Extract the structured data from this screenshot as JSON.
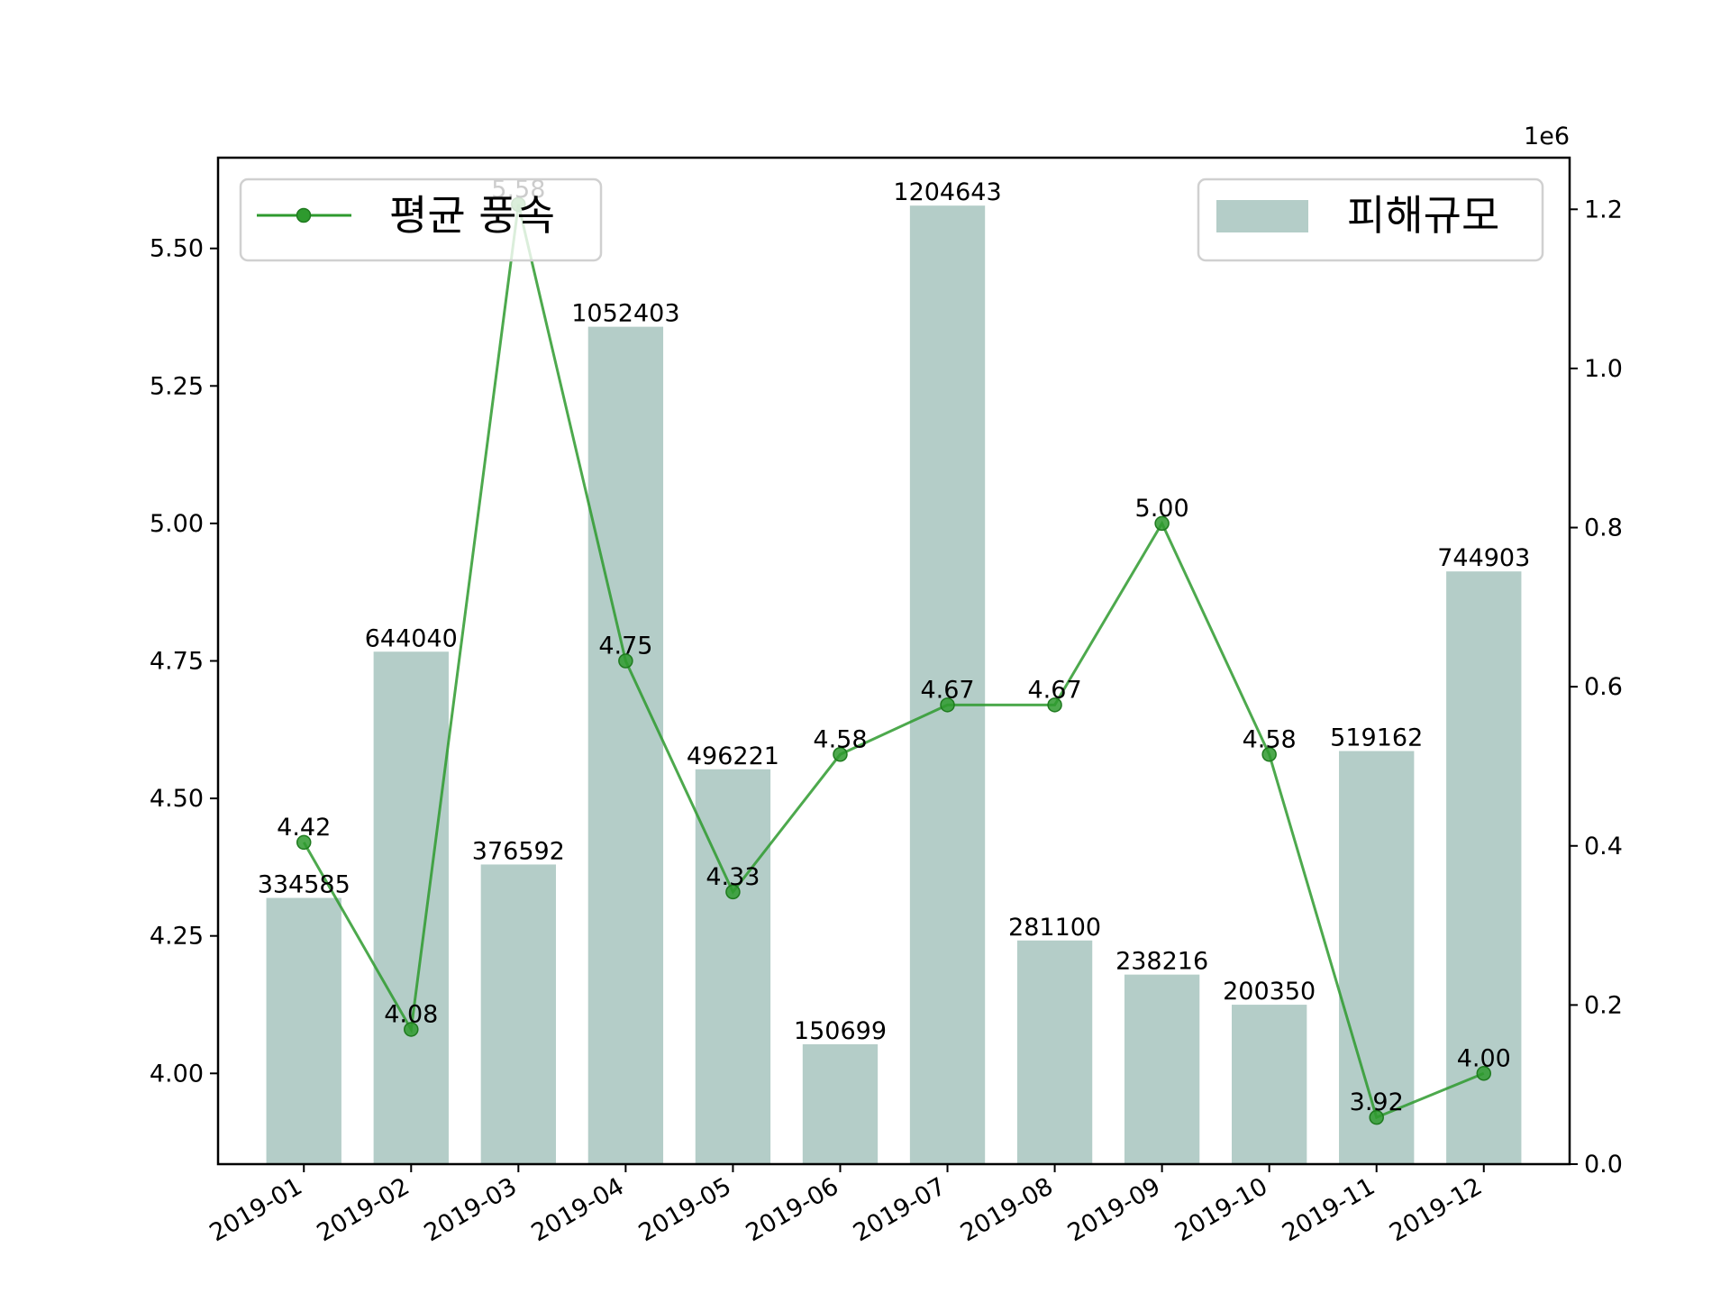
{
  "chart_data": {
    "type": "bar",
    "categories": [
      "2019-01",
      "2019-02",
      "2019-03",
      "2019-04",
      "2019-05",
      "2019-06",
      "2019-07",
      "2019-08",
      "2019-09",
      "2019-10",
      "2019-11",
      "2019-12"
    ],
    "series": [
      {
        "name": "피해규모",
        "kind": "bar",
        "axis": "right",
        "color": "#b4cdc8",
        "values": [
          334585,
          644040,
          376592,
          1052403,
          496221,
          150699,
          1204643,
          281100,
          238216,
          200350,
          519162,
          744903
        ],
        "value_labels": [
          "334585",
          "644040",
          "376592",
          "1052403",
          "496221",
          "150699",
          "1204643",
          "281100",
          "238216",
          "200350",
          "519162",
          "744903"
        ]
      },
      {
        "name": "평균 풍속",
        "kind": "line",
        "axis": "left",
        "color": "#2e9a2e",
        "values": [
          4.42,
          4.08,
          5.58,
          4.75,
          4.33,
          4.58,
          4.67,
          4.67,
          5.0,
          4.58,
          3.92,
          4.0
        ],
        "value_labels": [
          "4.42",
          "4.08",
          "5.58",
          "4.75",
          "4.33",
          "4.58",
          "4.67",
          "4.67",
          "5.00",
          "4.58",
          "3.92",
          "4.00"
        ]
      }
    ],
    "y_left": {
      "lim": [
        3.835,
        5.665
      ],
      "ticks": [
        4.0,
        4.25,
        4.5,
        4.75,
        5.0,
        5.25,
        5.5
      ],
      "tick_labels": [
        "4.00",
        "4.25",
        "4.50",
        "4.75",
        "5.00",
        "5.25",
        "5.50"
      ]
    },
    "y_right": {
      "lim": [
        0,
        1264875
      ],
      "ticks": [
        0,
        200000,
        400000,
        600000,
        800000,
        1000000,
        1200000
      ],
      "tick_labels": [
        "0.0",
        "0.2",
        "0.4",
        "0.6",
        "0.8",
        "1.0",
        "1.2"
      ],
      "offset_label": "1e6"
    },
    "legends": [
      {
        "label": "평균 풍속",
        "position": "upper-left"
      },
      {
        "label": "피해규모",
        "position": "upper-right"
      }
    ],
    "grid": false
  }
}
